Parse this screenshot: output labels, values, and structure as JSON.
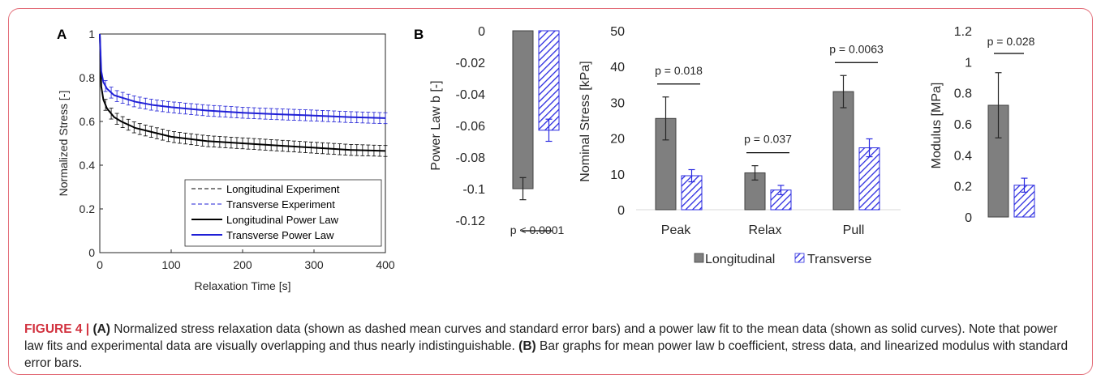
{
  "figure": {
    "label": "FIGURE 4 |"
  },
  "caption": {
    "label_a": "(A)",
    "text_a": " Normalized stress relaxation data (shown as dashed mean curves and standard error bars) and a power law fit to the mean data (shown as solid curves). Note that power law fits and experimental data are visually overlapping and thus nearly indistinguishable. ",
    "label_b": "(B)",
    "text_b": " Bar graphs for mean power law b coefficient, stress data, and linearized modulus with standard error bars."
  },
  "colors": {
    "longitudinal": "#000000",
    "transverse": "#1f1fd6",
    "longitudinal_bar": "#7f7f7f",
    "transverse_hatch": "#2b2be0",
    "caption_label": "#d2323f"
  },
  "chart_data": [
    {
      "panel": "A",
      "type": "line",
      "xlabel": "Relaxation Time [s]",
      "ylabel": "Normalized Stress [-]",
      "xlim": [
        0,
        400
      ],
      "ylim": [
        0,
        1
      ],
      "xticks": [
        0,
        100,
        200,
        300,
        400
      ],
      "yticks": [
        0,
        0.2,
        0.4,
        0.6,
        0.8,
        1
      ],
      "ytick_labels": [
        "0",
        "0.2",
        "0.4",
        "0.6",
        "0.8",
        "1"
      ],
      "legend_position": "bottom-right",
      "series": [
        {
          "name": "Longitudinal Experiment",
          "style": "dashed",
          "color": "#000000",
          "x": [
            0,
            2,
            5,
            10,
            20,
            30,
            50,
            75,
            100,
            150,
            200,
            250,
            300,
            350,
            400
          ],
          "y": [
            1.0,
            0.76,
            0.7,
            0.66,
            0.62,
            0.6,
            0.57,
            0.55,
            0.53,
            0.51,
            0.5,
            0.49,
            0.48,
            0.47,
            0.465
          ],
          "error": 0.025
        },
        {
          "name": "Transverse Experiment",
          "style": "dashed",
          "color": "#1f1fd6",
          "x": [
            0,
            2,
            5,
            10,
            20,
            30,
            50,
            75,
            100,
            150,
            200,
            250,
            300,
            350,
            400
          ],
          "y": [
            1.0,
            0.83,
            0.78,
            0.75,
            0.72,
            0.71,
            0.69,
            0.675,
            0.665,
            0.65,
            0.64,
            0.633,
            0.627,
            0.62,
            0.615
          ],
          "error": 0.025
        },
        {
          "name": "Longitudinal Power Law",
          "style": "solid",
          "color": "#000000",
          "x": [
            0,
            2,
            5,
            10,
            20,
            30,
            50,
            75,
            100,
            150,
            200,
            250,
            300,
            350,
            400
          ],
          "y": [
            1.0,
            0.76,
            0.7,
            0.66,
            0.62,
            0.6,
            0.57,
            0.55,
            0.53,
            0.51,
            0.5,
            0.49,
            0.48,
            0.47,
            0.465
          ]
        },
        {
          "name": "Transverse Power Law",
          "style": "solid",
          "color": "#1f1fd6",
          "x": [
            0,
            2,
            5,
            10,
            20,
            30,
            50,
            75,
            100,
            150,
            200,
            250,
            300,
            350,
            400
          ],
          "y": [
            1.0,
            0.83,
            0.78,
            0.75,
            0.72,
            0.71,
            0.69,
            0.675,
            0.665,
            0.65,
            0.64,
            0.633,
            0.627,
            0.62,
            0.615
          ]
        }
      ]
    },
    {
      "panel": "B",
      "type": "bar",
      "ylabel": "Power Law b [-]",
      "ylim": [
        -0.12,
        0
      ],
      "yticks": [
        0,
        -0.02,
        -0.04,
        -0.06,
        -0.08,
        -0.1,
        -0.12
      ],
      "ytick_labels": [
        "0",
        "-0.02",
        "-0.04",
        "-0.06",
        "-0.08",
        "-0.1",
        "-0.12"
      ],
      "series": [
        {
          "name": "Longitudinal",
          "values": [
            -0.1
          ],
          "errors": [
            0.007
          ]
        },
        {
          "name": "Transverse",
          "values": [
            -0.063
          ],
          "errors": [
            0.007
          ]
        }
      ],
      "annotation": "p < 0.0001"
    },
    {
      "type": "bar",
      "ylabel": "Nominal Stress [kPa]",
      "categories": [
        "Peak",
        "Relax",
        "Pull"
      ],
      "ylim": [
        0,
        50
      ],
      "yticks": [
        0,
        10,
        20,
        30,
        40,
        50
      ],
      "series": [
        {
          "name": "Longitudinal",
          "values": [
            25.5,
            10.3,
            33
          ],
          "errors": [
            6,
            2,
            4.5
          ]
        },
        {
          "name": "Transverse",
          "values": [
            9.5,
            5.5,
            17.3
          ],
          "errors": [
            1.7,
            1.3,
            2.5
          ]
        }
      ],
      "annotations": [
        "p = 0.018",
        "p = 0.037",
        "p = 0.0063"
      ],
      "legend": [
        "Longitudinal",
        "Transverse"
      ],
      "legend_position": "bottom"
    },
    {
      "type": "bar",
      "ylabel": "Modulus [MPa]",
      "ylim": [
        0,
        1.2
      ],
      "yticks": [
        0,
        0.2,
        0.4,
        0.6,
        0.8,
        1,
        1.2
      ],
      "ytick_labels": [
        "0",
        "0.2",
        "0.4",
        "0.6",
        "0.8",
        "1",
        "1.2"
      ],
      "series": [
        {
          "name": "Longitudinal",
          "values": [
            0.72
          ],
          "errors": [
            0.21
          ]
        },
        {
          "name": "Transverse",
          "values": [
            0.205
          ],
          "errors": [
            0.045
          ]
        }
      ],
      "annotation": "p = 0.028"
    }
  ]
}
